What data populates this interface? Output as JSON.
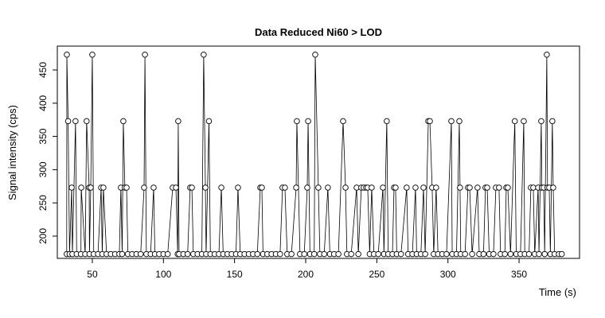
{
  "chart_data": {
    "type": "line",
    "markers": "open-circle",
    "color": "#000000",
    "title": "Data Reduced Ni60 > LOD",
    "x_label": "Time (s)",
    "y_label": "Signal intensity (cps)",
    "xlim": [
      25.4,
      392.5
    ],
    "ylim": [
      166.5,
      485.9
    ],
    "xticks": [
      50,
      100,
      150,
      200,
      250,
      300,
      350
    ],
    "yticks": [
      200,
      250,
      300,
      350,
      400,
      450
    ],
    "x": [
      32,
      32.1,
      33,
      34,
      35.5,
      36,
      38.2,
      39,
      42,
      42.2,
      45,
      46,
      47.8,
      48,
      48.9,
      50,
      51,
      54,
      56.2,
      57,
      57.8,
      60,
      63,
      66,
      69,
      70.1,
      71,
      71.8,
      72.9,
      74.1,
      75,
      78,
      81,
      84,
      86.4,
      87,
      88,
      91,
      93.1,
      94,
      97,
      100,
      103,
      106.5,
      108.8,
      110,
      110.4,
      111,
      114,
      117,
      118.8,
      120,
      121,
      124,
      127,
      128.3,
      129.5,
      130,
      132,
      133,
      136,
      139,
      140.7,
      142,
      145,
      148,
      151,
      152.4,
      154,
      157,
      160,
      163,
      166,
      168.1,
      169.2,
      170,
      173,
      176,
      179,
      182,
      183.7,
      185.4,
      187,
      190,
      193.3,
      193.8,
      196,
      199,
      201.1,
      201.7,
      203,
      206,
      206.7,
      208.9,
      210,
      213,
      215.6,
      217,
      220,
      223,
      226.3,
      228,
      229,
      232,
      235.8,
      237,
      239.1,
      240.8,
      242.5,
      243.6,
      245,
      246.4,
      248,
      251,
      254.3,
      255,
      257,
      258,
      261,
      262.1,
      263.2,
      264,
      267,
      271,
      272,
      275,
      277.2,
      278,
      281,
      282.8,
      284,
      286.2,
      287.3,
      288.9,
      290,
      291.7,
      293,
      296,
      299,
      302.4,
      303,
      306,
      308,
      308.5,
      309,
      312,
      314.1,
      315.3,
      317,
      320.8,
      322,
      325,
      326.4,
      327.6,
      329,
      332,
      333.7,
      335.9,
      337,
      340,
      341,
      342.1,
      344,
      347,
      348,
      351,
      353.3,
      354,
      357,
      358.3,
      360,
      361,
      363.4,
      364,
      365.6,
      366,
      367.3,
      368,
      369.5,
      370,
      371.2,
      372,
      373.4,
      374,
      375,
      378,
      380
    ],
    "values": [
      173,
      473,
      373,
      173,
      273,
      173,
      373,
      173,
      173,
      273,
      173,
      373,
      273,
      173,
      273,
      473,
      173,
      173,
      273,
      173,
      273,
      173,
      173,
      173,
      173,
      273,
      173,
      373,
      273,
      273,
      173,
      173,
      173,
      173,
      273,
      473,
      173,
      173,
      273,
      173,
      173,
      173,
      173,
      273,
      273,
      173,
      373,
      173,
      173,
      173,
      273,
      273,
      173,
      173,
      173,
      473,
      273,
      173,
      373,
      173,
      173,
      173,
      273,
      173,
      173,
      173,
      173,
      273,
      173,
      173,
      173,
      173,
      173,
      273,
      273,
      173,
      173,
      173,
      173,
      173,
      273,
      273,
      173,
      173,
      273,
      373,
      173,
      173,
      273,
      373,
      173,
      173,
      473,
      273,
      173,
      173,
      273,
      173,
      173,
      173,
      373,
      273,
      173,
      173,
      273,
      173,
      273,
      273,
      273,
      273,
      173,
      273,
      173,
      173,
      273,
      173,
      373,
      173,
      173,
      273,
      273,
      173,
      173,
      273,
      173,
      173,
      273,
      173,
      173,
      273,
      173,
      373,
      373,
      273,
      173,
      273,
      173,
      173,
      173,
      373,
      173,
      173,
      373,
      273,
      173,
      173,
      273,
      273,
      173,
      273,
      173,
      173,
      273,
      273,
      173,
      173,
      273,
      273,
      173,
      173,
      273,
      273,
      173,
      373,
      173,
      173,
      373,
      173,
      173,
      273,
      273,
      173,
      273,
      173,
      373,
      273,
      273,
      173,
      473,
      273,
      273,
      173,
      373,
      273,
      173,
      173,
      173
    ]
  }
}
